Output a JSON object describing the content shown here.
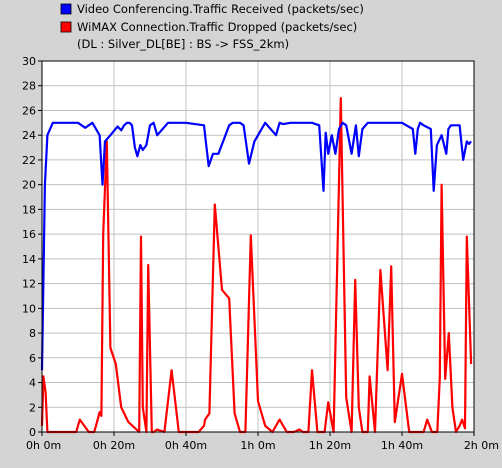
{
  "colors": {
    "background": "#d4d4d4",
    "plot_background": "#ffffff",
    "grid": "#c0c0c0",
    "axis": "#000000"
  },
  "chart_data": {
    "type": "line",
    "legend_position": "top-left",
    "grid": true,
    "legend": [
      "Video Conferencing.Traffic Received (packets/sec)",
      "WiMAX Connection.Traffic Dropped (packets/sec)",
      "(DL : Silver_DL[BE] : BS -> FSS_2km)"
    ],
    "xlim_minutes": [
      0,
      120
    ],
    "ylim": [
      0,
      30
    ],
    "x_ticks": [
      0,
      20,
      40,
      60,
      80,
      100,
      120
    ],
    "x_tick_labels": [
      "0h 0m",
      "0h 20m",
      "0h 40m",
      "1h 0m",
      "1h 20m",
      "1h 40m",
      "2h 0m"
    ],
    "y_ticks": [
      0,
      2,
      4,
      6,
      8,
      10,
      12,
      14,
      16,
      18,
      20,
      22,
      24,
      26,
      28,
      30
    ],
    "y_tick_labels": [
      "0",
      "2",
      "4",
      "6",
      "8",
      "10",
      "12",
      "14",
      "16",
      "18",
      "20",
      "22",
      "24",
      "26",
      "28",
      "30"
    ],
    "series": [
      {
        "name": "Video Conferencing.Traffic Received (packets/sec)",
        "color": "#0000ff",
        "x": [
          0,
          0.8,
          1.5,
          3,
          6,
          10,
          12,
          14,
          16,
          16.8,
          17.5,
          19,
          21,
          22,
          22.8,
          23.6,
          24.3,
          25,
          25.8,
          26.5,
          27.3,
          28,
          29,
          30,
          31,
          32,
          35,
          40,
          45,
          45.5,
          46.3,
          47.5,
          49,
          52,
          53,
          55,
          56,
          57.5,
          59,
          62,
          65,
          66,
          67,
          69,
          72,
          75,
          77,
          78.2,
          78.8,
          79.5,
          80.5,
          81.5,
          82.5,
          83.5,
          84.5,
          86,
          87.2,
          88,
          89,
          90.5,
          92,
          95,
          100,
          103,
          103.7,
          104.4,
          105,
          106,
          108,
          108.8,
          109.7,
          111,
          112.3,
          112.9,
          113.6,
          114.5,
          116,
          117,
          118,
          118.6,
          119.2
        ],
        "values": [
          5,
          20,
          24,
          25,
          25,
          25,
          24.6,
          25,
          24,
          20,
          23.5,
          24,
          24.7,
          24.4,
          24.8,
          25,
          25,
          24.8,
          23,
          22.3,
          23.2,
          22.8,
          23.2,
          24.8,
          25,
          24,
          25,
          25,
          24.8,
          23.5,
          21.5,
          22.5,
          22.5,
          24.8,
          25,
          25,
          24.8,
          21.7,
          23.5,
          25,
          24,
          25,
          24.9,
          25,
          25,
          25,
          24.8,
          19.5,
          24.2,
          22.5,
          24,
          22.5,
          24.5,
          25,
          24.8,
          22.5,
          24.8,
          22.3,
          24.5,
          25,
          25,
          25,
          25,
          24.5,
          22.5,
          24.5,
          25,
          24.8,
          24.5,
          19.5,
          23.2,
          24,
          22.5,
          24.5,
          24.8,
          24.8,
          24.8,
          22,
          23.5,
          23.3,
          23.5
        ]
      },
      {
        "name": "WiMAX Connection.Traffic Dropped (packets/sec)",
        "color": "#ff0000",
        "x": [
          0,
          0.4,
          1,
          1.5,
          2.5,
          4,
          7,
          9.5,
          10.5,
          13,
          14.5,
          15,
          16,
          16.5,
          17,
          18,
          19,
          20.5,
          22,
          24,
          27,
          27.5,
          28,
          29,
          29.5,
          30.5,
          31,
          32,
          34,
          36,
          38,
          40,
          42,
          43.5,
          45,
          45.3,
          46.5,
          48,
          50,
          52,
          53.5,
          55,
          56.5,
          58,
          60,
          62,
          64,
          66,
          68,
          70,
          71.5,
          72.5,
          74,
          75,
          76.5,
          77.2,
          77.8,
          78.5,
          79.5,
          81,
          83,
          84.5,
          86,
          87,
          88,
          89,
          90,
          90.5,
          91,
          92.5,
          94,
          96,
          97,
          98,
          100,
          102,
          103.7,
          104.3,
          105,
          106,
          107,
          108.3,
          109,
          109.8,
          110.5,
          111,
          112,
          113,
          114,
          115,
          116,
          116.7,
          117.5,
          118,
          119.2
        ],
        "values": [
          0.5,
          4.5,
          3.2,
          0,
          0,
          0,
          0,
          0,
          1,
          0,
          0,
          0.5,
          1.6,
          1.3,
          16,
          23.5,
          6.8,
          5.5,
          2,
          0.8,
          0,
          15.8,
          2,
          0,
          13.5,
          0,
          0,
          0.2,
          0,
          5,
          0,
          0,
          0,
          0,
          0.5,
          1,
          1.5,
          18.4,
          11.5,
          10.8,
          1.5,
          0,
          0,
          15.9,
          2.5,
          0.5,
          0,
          1,
          0,
          0,
          0.2,
          0,
          0,
          5,
          0,
          0,
          0,
          0,
          2.4,
          0,
          27,
          2.8,
          0,
          12.3,
          2,
          0,
          0,
          0,
          4.5,
          0,
          13.1,
          5,
          13.4,
          0.8,
          4.7,
          0,
          0,
          0,
          0,
          0,
          1,
          0,
          0,
          0,
          4.4,
          20,
          4.3,
          8,
          2,
          0,
          0.5,
          1,
          0.3,
          15.8,
          5.5
        ]
      }
    ]
  }
}
